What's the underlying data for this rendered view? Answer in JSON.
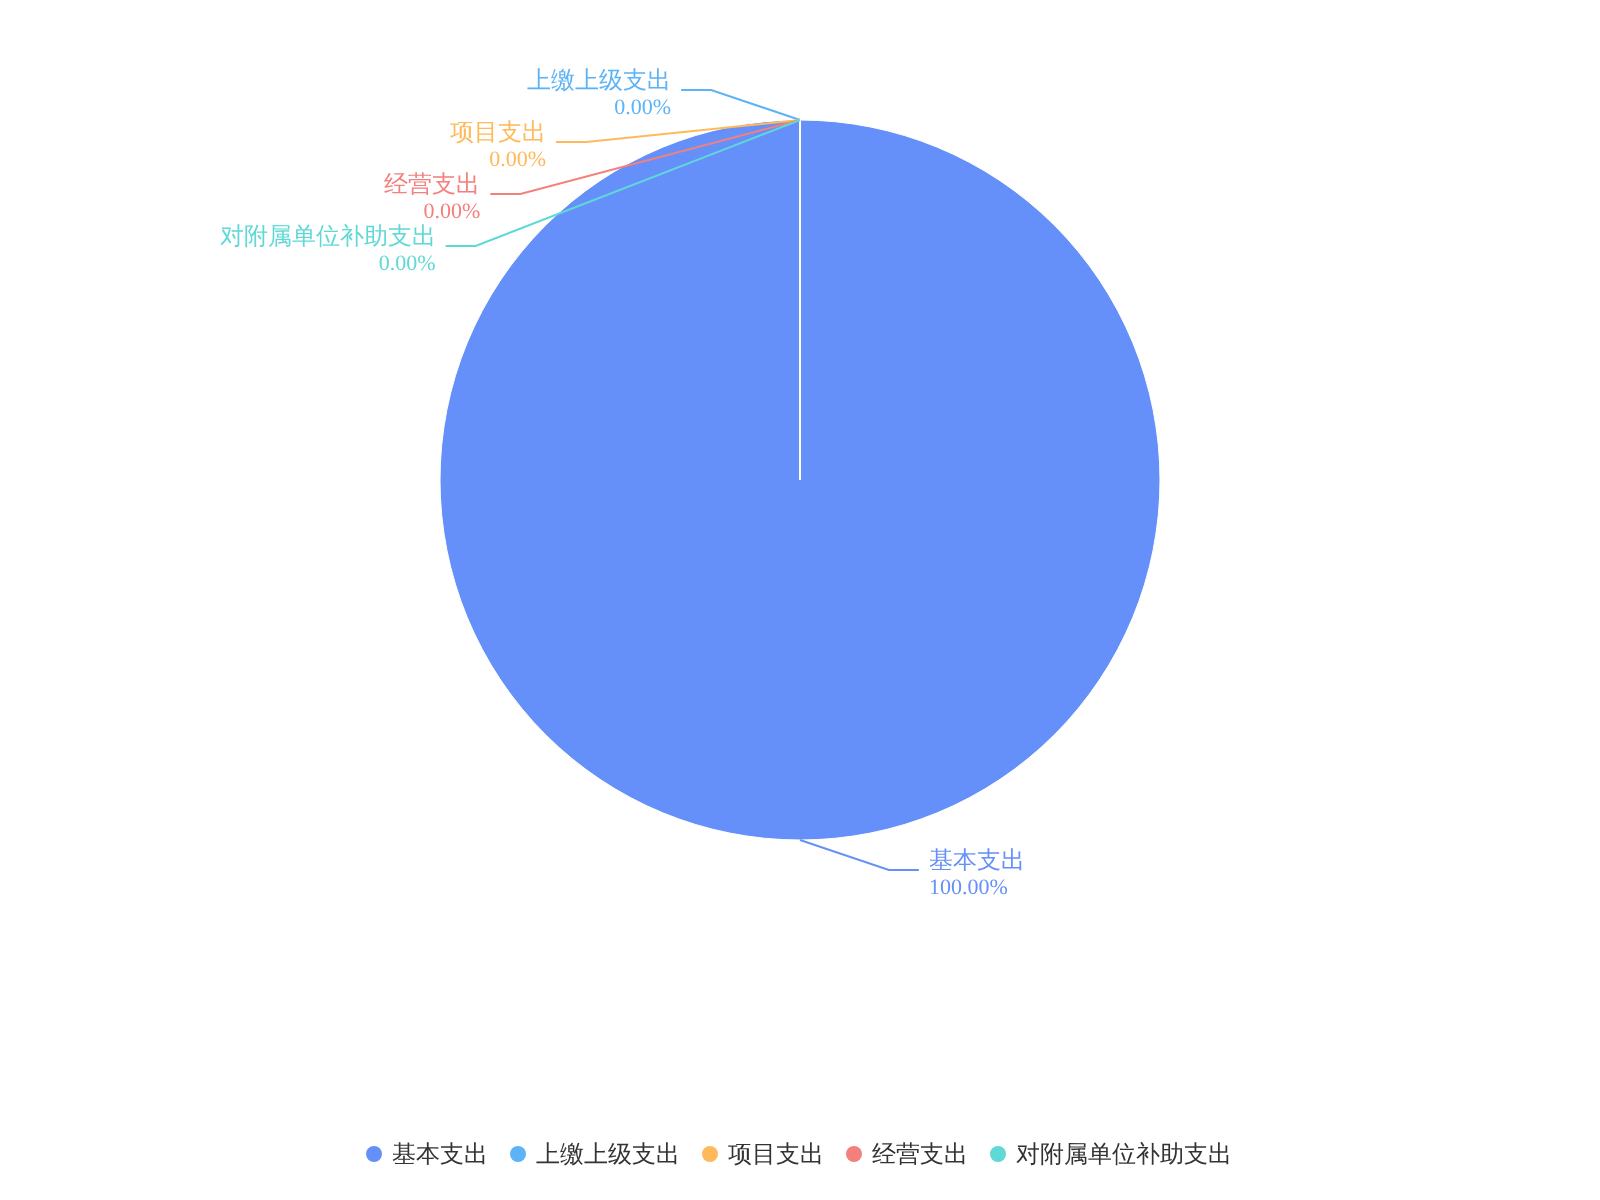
{
  "chart_data": {
    "type": "pie",
    "categories": [
      "基本支出",
      "上缴上级支出",
      "项目支出",
      "经营支出",
      "对附属单位补助支出"
    ],
    "values": [
      100,
      0,
      0,
      0,
      0
    ],
    "colors": [
      "#6690f9",
      "#5cb3f5",
      "#ffb95a",
      "#f3807c",
      "#5fd9d6"
    ],
    "value_labels": [
      "100.00%",
      "0.00%",
      "0.00%",
      "0.00%",
      "0.00%"
    ],
    "legend": "bottom"
  }
}
